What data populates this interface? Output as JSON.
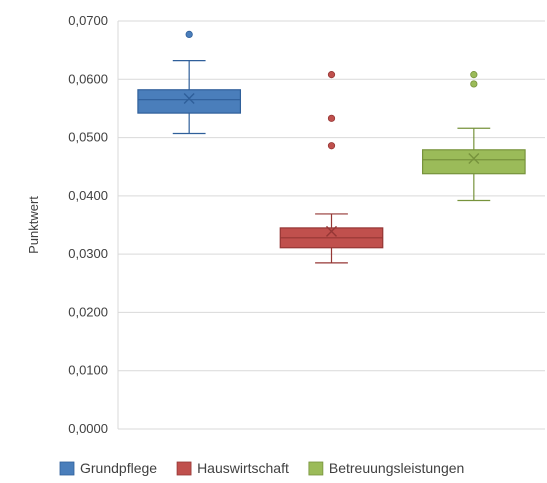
{
  "chart_data": {
    "type": "box",
    "ylabel": "Punktwert",
    "ylim": [
      0,
      0.07
    ],
    "yticks": [
      0,
      0.01,
      0.02,
      0.03,
      0.04,
      0.05,
      0.06,
      0.07
    ],
    "ytick_labels": [
      "0,0000",
      "0,0100",
      "0,0200",
      "0,0300",
      "0,0400",
      "0,0500",
      "0,0600",
      "0,0700"
    ],
    "grid": "horizontal",
    "legend": "bottom",
    "series": [
      {
        "name": "Grundpflege",
        "color": "#4a7ebb",
        "stroke": "#2f5f9a",
        "whisker_low": 0.0507,
        "q1": 0.0542,
        "median": 0.0565,
        "q3": 0.0582,
        "whisker_high": 0.0632,
        "mean": 0.0567,
        "outliers": [
          0.0677
        ]
      },
      {
        "name": "Hauswirtschaft",
        "color": "#c0504d",
        "stroke": "#953735",
        "whisker_low": 0.0285,
        "q1": 0.0311,
        "median": 0.0328,
        "q3": 0.0345,
        "whisker_high": 0.0369,
        "mean": 0.0339,
        "outliers": [
          0.0608,
          0.0533,
          0.0486
        ]
      },
      {
        "name": "Betreuungsleistungen",
        "color": "#9bbb59",
        "stroke": "#77933c",
        "whisker_low": 0.0392,
        "q1": 0.0438,
        "median": 0.0462,
        "q3": 0.0479,
        "whisker_high": 0.0516,
        "mean": 0.0464,
        "outliers": [
          0.0608,
          0.0592
        ]
      }
    ]
  }
}
